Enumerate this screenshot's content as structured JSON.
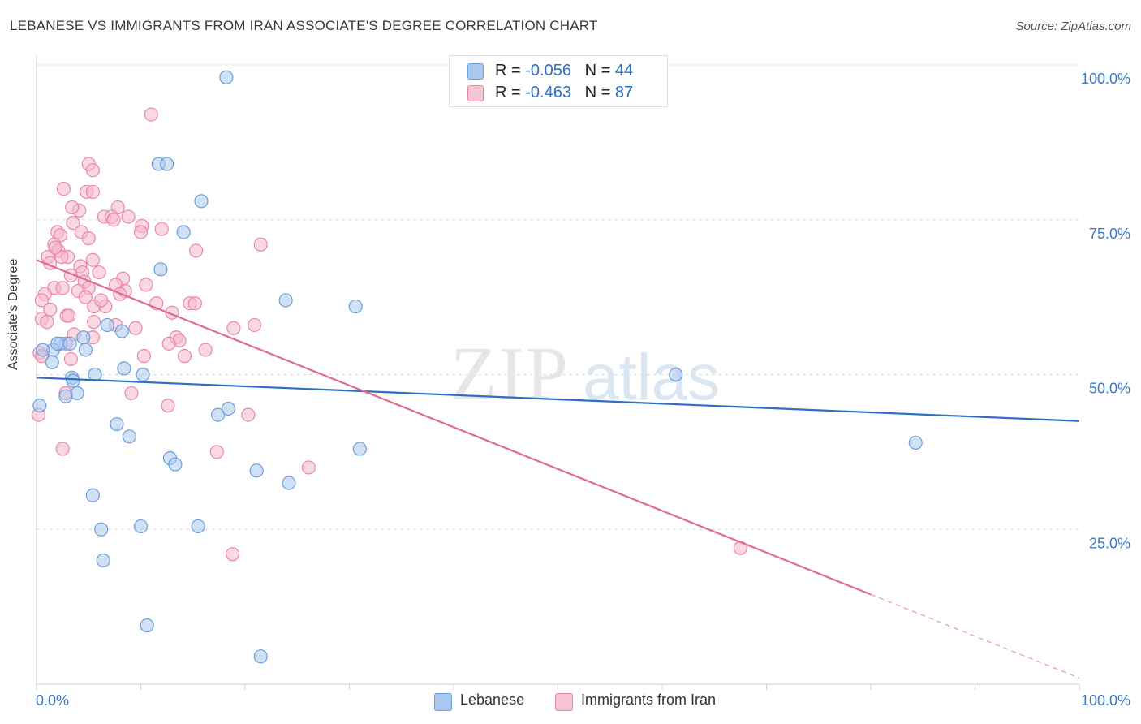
{
  "header": {
    "title": "LEBANESE VS IMMIGRANTS FROM IRAN ASSOCIATE'S DEGREE CORRELATION CHART",
    "source": "Source: ZipAtlas.com"
  },
  "watermark": {
    "zip": "ZIP",
    "atlas": "atlas"
  },
  "legend": {
    "rows": [
      {
        "r_label": "R = ",
        "r_value": "-0.056",
        "n_label": "N = ",
        "n_value": "44"
      },
      {
        "r_label": "R = ",
        "r_value": "-0.463",
        "n_label": "N = ",
        "n_value": "87"
      }
    ]
  },
  "colors": {
    "lebanese_fill": "#a9c8ef",
    "lebanese_stroke": "#6a9fdc",
    "lebanese_line": "#2b6fc6",
    "iran_fill": "#f6b8cb",
    "iran_stroke": "#ea87a6",
    "iran_line": "#e0699a",
    "axis_label": "#3a78c8",
    "grid": "#d9d9d9"
  },
  "chart_data": {
    "type": "scatter",
    "title": "LEBANESE VS IMMIGRANTS FROM IRAN ASSOCIATE'S DEGREE CORRELATION CHART",
    "xlabel": "",
    "ylabel": "Associate's Degree",
    "xlim": [
      0,
      100
    ],
    "ylim": [
      0,
      100
    ],
    "x_tick_labels": [
      "0.0%",
      "100.0%"
    ],
    "y_ticks": [
      25,
      50,
      75,
      100
    ],
    "y_tick_labels": [
      "25.0%",
      "50.0%",
      "75.0%",
      "100.0%"
    ],
    "grid": true,
    "legend_placement": "top-center",
    "series": [
      {
        "name": "Lebanese",
        "points": [
          [
            18.2,
            98
          ],
          [
            11.7,
            84
          ],
          [
            12.5,
            84
          ],
          [
            15.8,
            78
          ],
          [
            14.1,
            73
          ],
          [
            11.9,
            67
          ],
          [
            23.9,
            62
          ],
          [
            30.6,
            61
          ],
          [
            6.8,
            58
          ],
          [
            8.2,
            57
          ],
          [
            4.5,
            56
          ],
          [
            2.3,
            55
          ],
          [
            1.6,
            54
          ],
          [
            0.6,
            54
          ],
          [
            4.7,
            54
          ],
          [
            1.5,
            52
          ],
          [
            8.4,
            51
          ],
          [
            10.2,
            50
          ],
          [
            5.6,
            50
          ],
          [
            3.4,
            49.5
          ],
          [
            3.5,
            49
          ],
          [
            3.9,
            47
          ],
          [
            2.8,
            46.5
          ],
          [
            0.3,
            45
          ],
          [
            61.3,
            50
          ],
          [
            18.4,
            44.5
          ],
          [
            17.4,
            43.5
          ],
          [
            7.7,
            42
          ],
          [
            8.9,
            40
          ],
          [
            31,
            38
          ],
          [
            84.3,
            39
          ],
          [
            12.8,
            36.5
          ],
          [
            13.3,
            35.5
          ],
          [
            21.1,
            34.5
          ],
          [
            24.2,
            32.5
          ],
          [
            5.4,
            30.5
          ],
          [
            6.2,
            25
          ],
          [
            10,
            25.5
          ],
          [
            15.5,
            25.5
          ],
          [
            6.4,
            20
          ],
          [
            10.6,
            9.5
          ],
          [
            21.5,
            4.5
          ],
          [
            2,
            55
          ],
          [
            3.2,
            55
          ]
        ]
      },
      {
        "name": "Immigrants from Iran",
        "points": [
          [
            11,
            92
          ],
          [
            5,
            84
          ],
          [
            5.4,
            83
          ],
          [
            2.6,
            80
          ],
          [
            4.8,
            79.5
          ],
          [
            5.4,
            79.5
          ],
          [
            7.8,
            77
          ],
          [
            4.1,
            76.5
          ],
          [
            3.4,
            77
          ],
          [
            6.5,
            75.5
          ],
          [
            7.2,
            75.5
          ],
          [
            7.4,
            75
          ],
          [
            8.8,
            75.5
          ],
          [
            3.5,
            74.5
          ],
          [
            10.1,
            74
          ],
          [
            12,
            73.5
          ],
          [
            2,
            73
          ],
          [
            2.3,
            72.5
          ],
          [
            4.3,
            73
          ],
          [
            5,
            72
          ],
          [
            10,
            73
          ],
          [
            1.7,
            71
          ],
          [
            21.5,
            71
          ],
          [
            2.1,
            70
          ],
          [
            3,
            69
          ],
          [
            15.3,
            70
          ],
          [
            1.1,
            69
          ],
          [
            2.4,
            69
          ],
          [
            1.3,
            68
          ],
          [
            4.2,
            67.5
          ],
          [
            5.4,
            68.5
          ],
          [
            4.4,
            66.5
          ],
          [
            8.3,
            65.5
          ],
          [
            4.6,
            65
          ],
          [
            7.6,
            64.5
          ],
          [
            10.5,
            64.5
          ],
          [
            1.7,
            64
          ],
          [
            2.5,
            64
          ],
          [
            5,
            64
          ],
          [
            4,
            63.5
          ],
          [
            8.5,
            63.5
          ],
          [
            0.8,
            63
          ],
          [
            0.5,
            62
          ],
          [
            11.5,
            61.5
          ],
          [
            14.7,
            61.5
          ],
          [
            15.2,
            61.5
          ],
          [
            5.5,
            61
          ],
          [
            6.6,
            61
          ],
          [
            1.3,
            60.5
          ],
          [
            2.9,
            59.5
          ],
          [
            3.1,
            59.5
          ],
          [
            0.5,
            59
          ],
          [
            5.5,
            58.5
          ],
          [
            7.6,
            58
          ],
          [
            20.9,
            58
          ],
          [
            18.9,
            57.5
          ],
          [
            3.6,
            56.5
          ],
          [
            5.4,
            56
          ],
          [
            13.4,
            56
          ],
          [
            13.7,
            55.5
          ],
          [
            2.8,
            55
          ],
          [
            12.7,
            55
          ],
          [
            16.2,
            54
          ],
          [
            0.3,
            53.5
          ],
          [
            0.5,
            53
          ],
          [
            10.3,
            53
          ],
          [
            14.2,
            53
          ],
          [
            3.3,
            52.5
          ],
          [
            9.1,
            47
          ],
          [
            2.8,
            47
          ],
          [
            12.6,
            45
          ],
          [
            0.2,
            43.5
          ],
          [
            20.3,
            43.5
          ],
          [
            2.5,
            38
          ],
          [
            17.3,
            37.5
          ],
          [
            26.1,
            35
          ],
          [
            18.8,
            21
          ],
          [
            67.5,
            22
          ],
          [
            6.2,
            62
          ],
          [
            4.7,
            62.5
          ],
          [
            1.8,
            70.5
          ],
          [
            8,
            63
          ],
          [
            3.3,
            66
          ],
          [
            9.5,
            57.5
          ],
          [
            6,
            66.5
          ],
          [
            13,
            60
          ],
          [
            1,
            58.5
          ]
        ]
      }
    ],
    "trend_lines": [
      {
        "series": "Lebanese",
        "x": [
          0,
          100
        ],
        "y": [
          49.5,
          42.5
        ]
      },
      {
        "series": "Immigrants from Iran",
        "x": [
          0,
          80
        ],
        "y": [
          68.5,
          14.5
        ],
        "dashed_extension": {
          "x": [
            80,
            100
          ],
          "y": [
            14.5,
            1
          ]
        }
      }
    ]
  },
  "bottom_legend": {
    "items": [
      {
        "label": "Lebanese"
      },
      {
        "label": "Immigrants from Iran"
      }
    ]
  }
}
